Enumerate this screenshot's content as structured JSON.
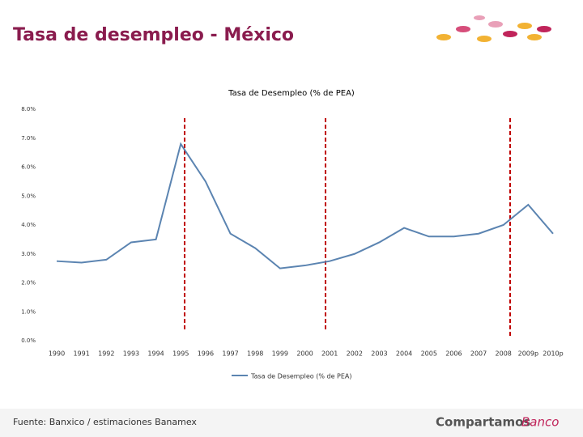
{
  "slide_title": "Tasa de desempleo - México",
  "footer": {
    "source": "Fuente: Banxico / estimaciones Banamex"
  },
  "logo": {
    "brand": "Compartamos",
    "sub": "Banco"
  },
  "chart_data": {
    "type": "line",
    "title": "Tasa de Desempleo (% de PEA)",
    "categories": [
      "1990",
      "1991",
      "1992",
      "1993",
      "1994",
      "1995",
      "1996",
      "1997",
      "1998",
      "1999",
      "2000",
      "2001",
      "2002",
      "2003",
      "2004",
      "2005",
      "2006",
      "2007",
      "2008",
      "2009p",
      "2010p"
    ],
    "series": [
      {
        "name": "Tasa de Desempleo (% de PEA)",
        "color": "#5b84b1",
        "values": [
          2.75,
          2.7,
          2.8,
          3.4,
          3.5,
          6.8,
          5.5,
          3.7,
          3.2,
          2.5,
          2.6,
          2.75,
          3.0,
          3.4,
          3.9,
          3.6,
          3.6,
          3.7,
          4.0,
          4.7,
          3.7
        ]
      }
    ],
    "ylim": [
      0,
      8
    ],
    "yticks": [
      {
        "value": 0,
        "label": "0.0%"
      },
      {
        "value": 1,
        "label": "1.0%"
      },
      {
        "value": 2,
        "label": "2.0%"
      },
      {
        "value": 3,
        "label": "3.0%"
      },
      {
        "value": 4,
        "label": "4.0%"
      },
      {
        "value": 5,
        "label": "5.0%"
      },
      {
        "value": 6,
        "label": "6.0%"
      },
      {
        "value": 7,
        "label": "7.0%"
      },
      {
        "value": 8,
        "label": "8.0%"
      }
    ],
    "legend": "bottom"
  }
}
